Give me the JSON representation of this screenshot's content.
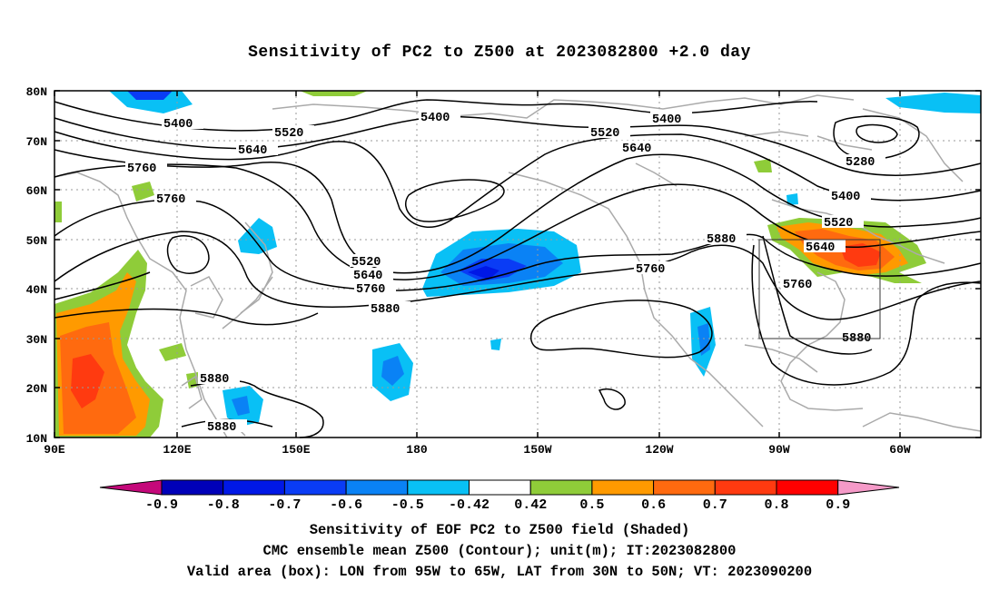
{
  "title": "Sensitivity of PC2 to Z500 at 2023082800 +2.0 day",
  "lat_labels": [
    "80N",
    "70N",
    "60N",
    "50N",
    "40N",
    "30N",
    "20N",
    "10N"
  ],
  "lon_labels": [
    "90E",
    "120E",
    "150E",
    "180",
    "150W",
    "120W",
    "90W",
    "60W"
  ],
  "contour_labels": {
    "c5400": "5400",
    "c5520": "5520",
    "c5640": "5640",
    "c5760": "5760",
    "c5880": "5880",
    "c5280": "5280"
  },
  "colorbar": {
    "labels": [
      "-0.9",
      "-0.8",
      "-0.7",
      "-0.6",
      "-0.5",
      "-0.42",
      "0.42",
      "0.5",
      "0.6",
      "0.7",
      "0.8",
      "0.9"
    ],
    "colors": [
      "#c4087a",
      "#0000b8",
      "#0018e6",
      "#0a3cf5",
      "#0a82f5",
      "#09c0f5",
      "#ffffff",
      "#8fcc39",
      "#ff9a00",
      "#ff6a0f",
      "#ff3a10",
      "#ff0000",
      "#f59ac8"
    ]
  },
  "box": {
    "lon_from": "95W",
    "lon_to": "65W",
    "lat_from": "30N",
    "lat_to": "50N"
  },
  "caption": {
    "line1": "Sensitivity of EOF PC2 to Z500 field (Shaded)",
    "line2": "CMC ensemble mean Z500 (Contour); unit(m); IT:2023082800",
    "line3": "Valid area (box): LON from 95W to 65W, LAT from 30N to 50N; VT: 2023090200"
  }
}
